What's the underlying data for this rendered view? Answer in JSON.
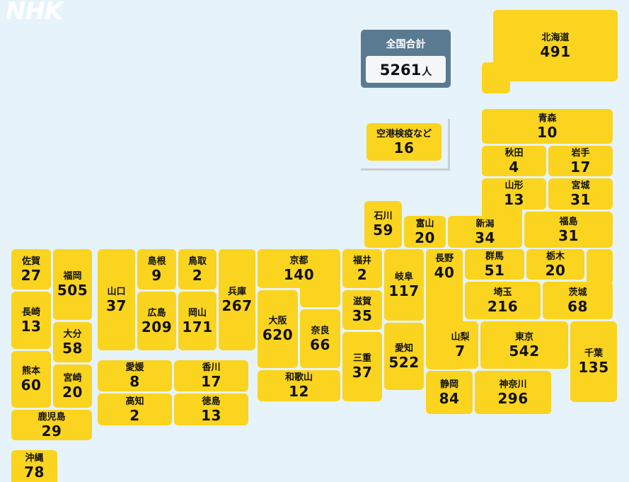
{
  "logo": "NHK",
  "total": {
    "label": "全国合計",
    "value": "5261",
    "unit": "人"
  },
  "prefectures": {
    "hokkaido": {
      "name": "北海道",
      "count": "491"
    },
    "aomori": {
      "name": "青森",
      "count": "10"
    },
    "akita": {
      "name": "秋田",
      "count": "4"
    },
    "iwate": {
      "name": "岩手",
      "count": "17"
    },
    "yamagata": {
      "name": "山形",
      "count": "13"
    },
    "miyagi": {
      "name": "宮城",
      "count": "31"
    },
    "niigata": {
      "name": "新潟",
      "count": "34"
    },
    "fukushima": {
      "name": "福島",
      "count": "31"
    },
    "ishikawa": {
      "name": "石川",
      "count": "59"
    },
    "toyama": {
      "name": "富山",
      "count": "20"
    },
    "gunma": {
      "name": "群馬",
      "count": "51"
    },
    "tochigi": {
      "name": "栃木",
      "count": "20"
    },
    "ibaraki": {
      "name": "茨城",
      "count": "68"
    },
    "saitama": {
      "name": "埼玉",
      "count": "216"
    },
    "nagano": {
      "name": "長野",
      "count": "40"
    },
    "gifu": {
      "name": "岐阜",
      "count": "117"
    },
    "fukui": {
      "name": "福井",
      "count": "2"
    },
    "shiga": {
      "name": "滋賀",
      "count": "35"
    },
    "mie": {
      "name": "三重",
      "count": "37"
    },
    "aichi": {
      "name": "愛知",
      "count": "522"
    },
    "yamanashi": {
      "name": "山梨",
      "count": "7"
    },
    "tokyo": {
      "name": "東京",
      "count": "542"
    },
    "chiba": {
      "name": "千葉",
      "count": "135"
    },
    "shizuoka": {
      "name": "静岡",
      "count": "84"
    },
    "kanagawa": {
      "name": "神奈川",
      "count": "296"
    },
    "kyoto": {
      "name": "京都",
      "count": "140"
    },
    "osaka": {
      "name": "大阪",
      "count": "620"
    },
    "nara": {
      "name": "奈良",
      "count": "66"
    },
    "wakayama": {
      "name": "和歌山",
      "count": "12"
    },
    "hyogo": {
      "name": "兵庫",
      "count": "267"
    },
    "tottori": {
      "name": "鳥取",
      "count": "2"
    },
    "shimane": {
      "name": "島根",
      "count": "9"
    },
    "okayama": {
      "name": "岡山",
      "count": "171"
    },
    "hiroshima": {
      "name": "広島",
      "count": "209"
    },
    "yamaguchi": {
      "name": "山口",
      "count": "37"
    },
    "ehime": {
      "name": "愛媛",
      "count": "8"
    },
    "kagawa": {
      "name": "香川",
      "count": "17"
    },
    "kochi": {
      "name": "高知",
      "count": "2"
    },
    "tokushima": {
      "name": "徳島",
      "count": "13"
    },
    "saga": {
      "name": "佐賀",
      "count": "27"
    },
    "fukuoka": {
      "name": "福岡",
      "count": "505"
    },
    "nagasaki": {
      "name": "長崎",
      "count": "13"
    },
    "oita": {
      "name": "大分",
      "count": "58"
    },
    "kumamoto": {
      "name": "熊本",
      "count": "60"
    },
    "miyazaki": {
      "name": "宮崎",
      "count": "20"
    },
    "kagoshima": {
      "name": "鹿児島",
      "count": "29"
    },
    "okinawa": {
      "name": "沖縄",
      "count": "78"
    },
    "airport": {
      "name": "空港検疫など",
      "count": "16"
    }
  },
  "colors": {
    "background": "#e6f3fb",
    "tile": "#fad41e",
    "total_box": "#5a7a91"
  }
}
